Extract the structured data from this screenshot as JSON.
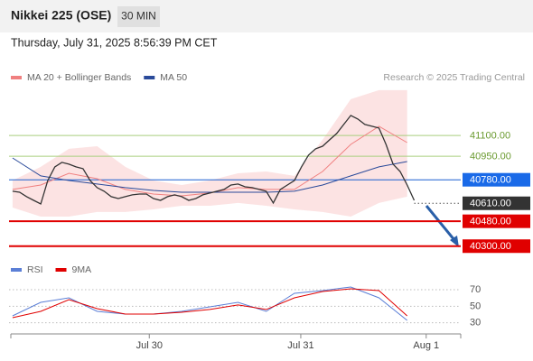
{
  "header": {
    "title": "Nikkei 225 (OSE)",
    "interval": "30 MIN",
    "timestamp": "Thursday, July 31, 2025 8:56:39 PM CET",
    "credit": "Research © 2025 Trading Central"
  },
  "chart_data": [
    {
      "type": "line",
      "ylim": [
        40220,
        41460
      ],
      "xlim": [
        -0.25,
        63.6
      ],
      "series": [
        {
          "name": "MA 20 + Bollinger Bands",
          "color": "#f08080",
          "x": [
            0,
            4,
            8,
            12,
            16,
            20,
            24,
            28,
            32,
            36,
            40,
            44,
            48,
            52,
            56
          ],
          "values": [
            40710,
            40742,
            40827,
            40788,
            40710,
            40677,
            40664,
            40684,
            40723,
            40710,
            40710,
            40840,
            41036,
            41167,
            41049
          ],
          "upper": [
            40775,
            40873,
            41004,
            41023,
            40873,
            40775,
            40742,
            40775,
            40827,
            40840,
            40808,
            41069,
            41363,
            41428,
            41428
          ],
          "lower": [
            40579,
            40514,
            40514,
            40547,
            40547,
            40566,
            40592,
            40592,
            40612,
            40592,
            40566,
            40547,
            40514,
            40612,
            40658
          ]
        },
        {
          "name": "MA 50",
          "color": "#2a4a9a",
          "x": [
            0,
            4,
            8,
            12,
            16,
            20,
            24,
            28,
            32,
            36,
            40,
            44,
            48,
            52,
            56
          ],
          "values": [
            40938,
            40808,
            40775,
            40749,
            40723,
            40703,
            40690,
            40690,
            40690,
            40690,
            40697,
            40742,
            40808,
            40873,
            40912
          ]
        },
        {
          "color": "#333333",
          "x": [
            0,
            1,
            2,
            3,
            4,
            5,
            6,
            7,
            8,
            9,
            10,
            11,
            12,
            13,
            14,
            15,
            16,
            17,
            18,
            19,
            20,
            21,
            22,
            23,
            24,
            25,
            26,
            27,
            28,
            29,
            30,
            31,
            32,
            33,
            34,
            35,
            36,
            37,
            38,
            39,
            40,
            41,
            42,
            43,
            44,
            45,
            46,
            47,
            48,
            49,
            50,
            51,
            52,
            53,
            54,
            55,
            56,
            57
          ],
          "values": [
            40697,
            40690,
            40658,
            40631,
            40605,
            40775,
            40873,
            40906,
            40893,
            40873,
            40860,
            40775,
            40723,
            40697,
            40658,
            40644,
            40658,
            40671,
            40677,
            40677,
            40644,
            40631,
            40658,
            40671,
            40658,
            40631,
            40644,
            40671,
            40684,
            40697,
            40710,
            40742,
            40749,
            40729,
            40723,
            40710,
            40697,
            40612,
            40710,
            40742,
            40775,
            40873,
            40958,
            41004,
            41023,
            41069,
            41115,
            41180,
            41245,
            41219,
            41180,
            41167,
            41154,
            41036,
            40893,
            40840,
            40742,
            40631
          ]
        }
      ],
      "levels": [
        {
          "value": 41100,
          "label": "41100.00",
          "color": "#a9cf7e",
          "text_color": "#6a9a2f",
          "style": "solid"
        },
        {
          "value": 40950,
          "label": "40950.00",
          "color": "#a9cf7e",
          "text_color": "#6a9a2f",
          "style": "solid"
        },
        {
          "value": 40780,
          "label": "40780.00",
          "color": "#1a5fd0",
          "text_color": "#ffffff",
          "box": "#1a6ae8",
          "style": "solid"
        },
        {
          "value": 40610,
          "label": "40610.00",
          "color": "#555555",
          "text_color": "#ffffff",
          "box": "#333333",
          "style": "dotted"
        },
        {
          "value": 40480,
          "label": "40480.00",
          "color": "#e00000",
          "text_color": "#ffffff",
          "box": "#e00000",
          "style": "thick"
        },
        {
          "value": 40300,
          "label": "40300.00",
          "color": "#e00000",
          "text_color": "#ffffff",
          "box": "#e00000",
          "style": "thick"
        }
      ]
    },
    {
      "type": "line",
      "ylim": [
        22,
        93
      ],
      "xlim": [
        -0.25,
        63.6
      ],
      "yticks": [
        70,
        50,
        30
      ],
      "xticks": [
        {
          "value": 19.4,
          "label": "Jul 30"
        },
        {
          "value": 40.9,
          "label": "Jul 31"
        },
        {
          "value": 58.7,
          "label": "Aug 1"
        }
      ],
      "series": [
        {
          "name": "RSI",
          "color": "#5b7fd6",
          "x": [
            0,
            4,
            8,
            12,
            16,
            20,
            24,
            28,
            32,
            36,
            40,
            44,
            48,
            52,
            56
          ],
          "values": [
            38.4,
            54.8,
            60.2,
            43.8,
            40.6,
            40.6,
            43.8,
            49.3,
            54.8,
            43.8,
            65.7,
            69,
            73.3,
            60.2,
            32.9
          ]
        },
        {
          "name": "9MA",
          "color": "#e00000",
          "x": [
            0,
            4,
            8,
            12,
            16,
            20,
            24,
            28,
            32,
            36,
            40,
            44,
            48,
            52,
            56
          ],
          "values": [
            36.2,
            43.8,
            58,
            47.1,
            40.6,
            40.6,
            42.8,
            46.1,
            51.6,
            46.1,
            60.2,
            67.9,
            71.2,
            69,
            38.4
          ]
        }
      ]
    }
  ]
}
